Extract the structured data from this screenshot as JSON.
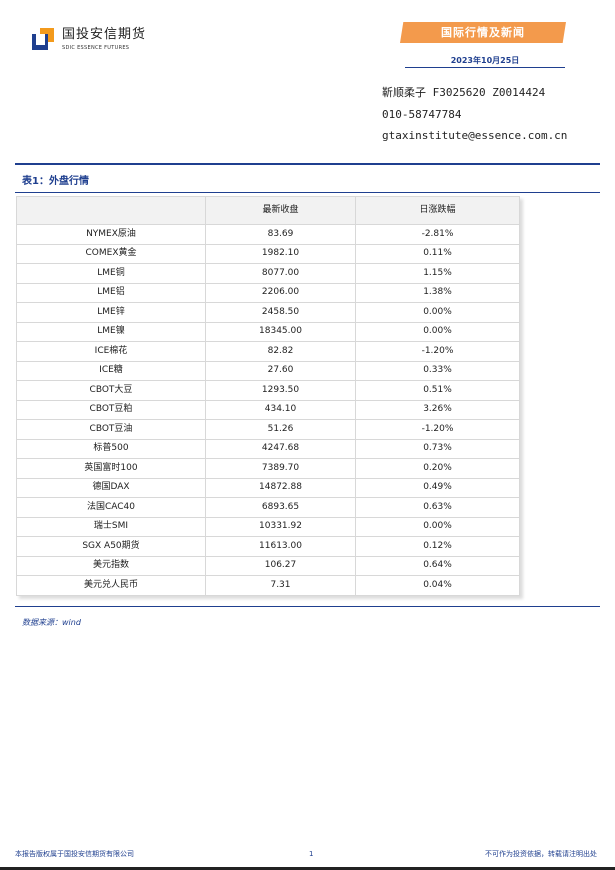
{
  "header": {
    "logo_cn": "国投安信期货",
    "logo_en": "SDIC ESSENCE FUTURES",
    "banner": "国际行情及新闻",
    "date": "2023年10月25日",
    "author": "靳顺柔子 F3025620 Z0014424",
    "phone": "010-58747784",
    "email": "gtaxinstitute@essence.com.cn"
  },
  "table": {
    "title": "表1：外盘行情",
    "headers": [
      "",
      "最新收盘",
      "日涨跌幅"
    ],
    "rows": [
      [
        "NYMEX原油",
        "83.69",
        "-2.81%"
      ],
      [
        "COMEX黄金",
        "1982.10",
        "0.11%"
      ],
      [
        "LME铜",
        "8077.00",
        "1.15%"
      ],
      [
        "LME铝",
        "2206.00",
        "1.38%"
      ],
      [
        "LME锌",
        "2458.50",
        "0.00%"
      ],
      [
        "LME镍",
        "18345.00",
        "0.00%"
      ],
      [
        "ICE棉花",
        "82.82",
        "-1.20%"
      ],
      [
        "ICE糖",
        "27.60",
        "0.33%"
      ],
      [
        "CBOT大豆",
        "1293.50",
        "0.51%"
      ],
      [
        "CBOT豆粕",
        "434.10",
        "3.26%"
      ],
      [
        "CBOT豆油",
        "51.26",
        "-1.20%"
      ],
      [
        "标普500",
        "4247.68",
        "0.73%"
      ],
      [
        "英国富时100",
        "7389.70",
        "0.20%"
      ],
      [
        "德国DAX",
        "14872.88",
        "0.49%"
      ],
      [
        "法国CAC40",
        "6893.65",
        "0.63%"
      ],
      [
        "瑞士SMI",
        "10331.92",
        "0.00%"
      ],
      [
        "SGX A50期货",
        "11613.00",
        "0.12%"
      ],
      [
        "美元指数",
        "106.27",
        "0.64%"
      ],
      [
        "美元兑人民币",
        "7.31",
        "0.04%"
      ]
    ]
  },
  "source": "数据来源：wind",
  "footer": {
    "left": "本报告版权属于国投安信期货有限公司",
    "page": "1",
    "right": "不可作为投资依据，转载请注明出处"
  },
  "colors": {
    "accent_blue": "#1f3f8f",
    "banner_orange": "#f39a4c"
  }
}
